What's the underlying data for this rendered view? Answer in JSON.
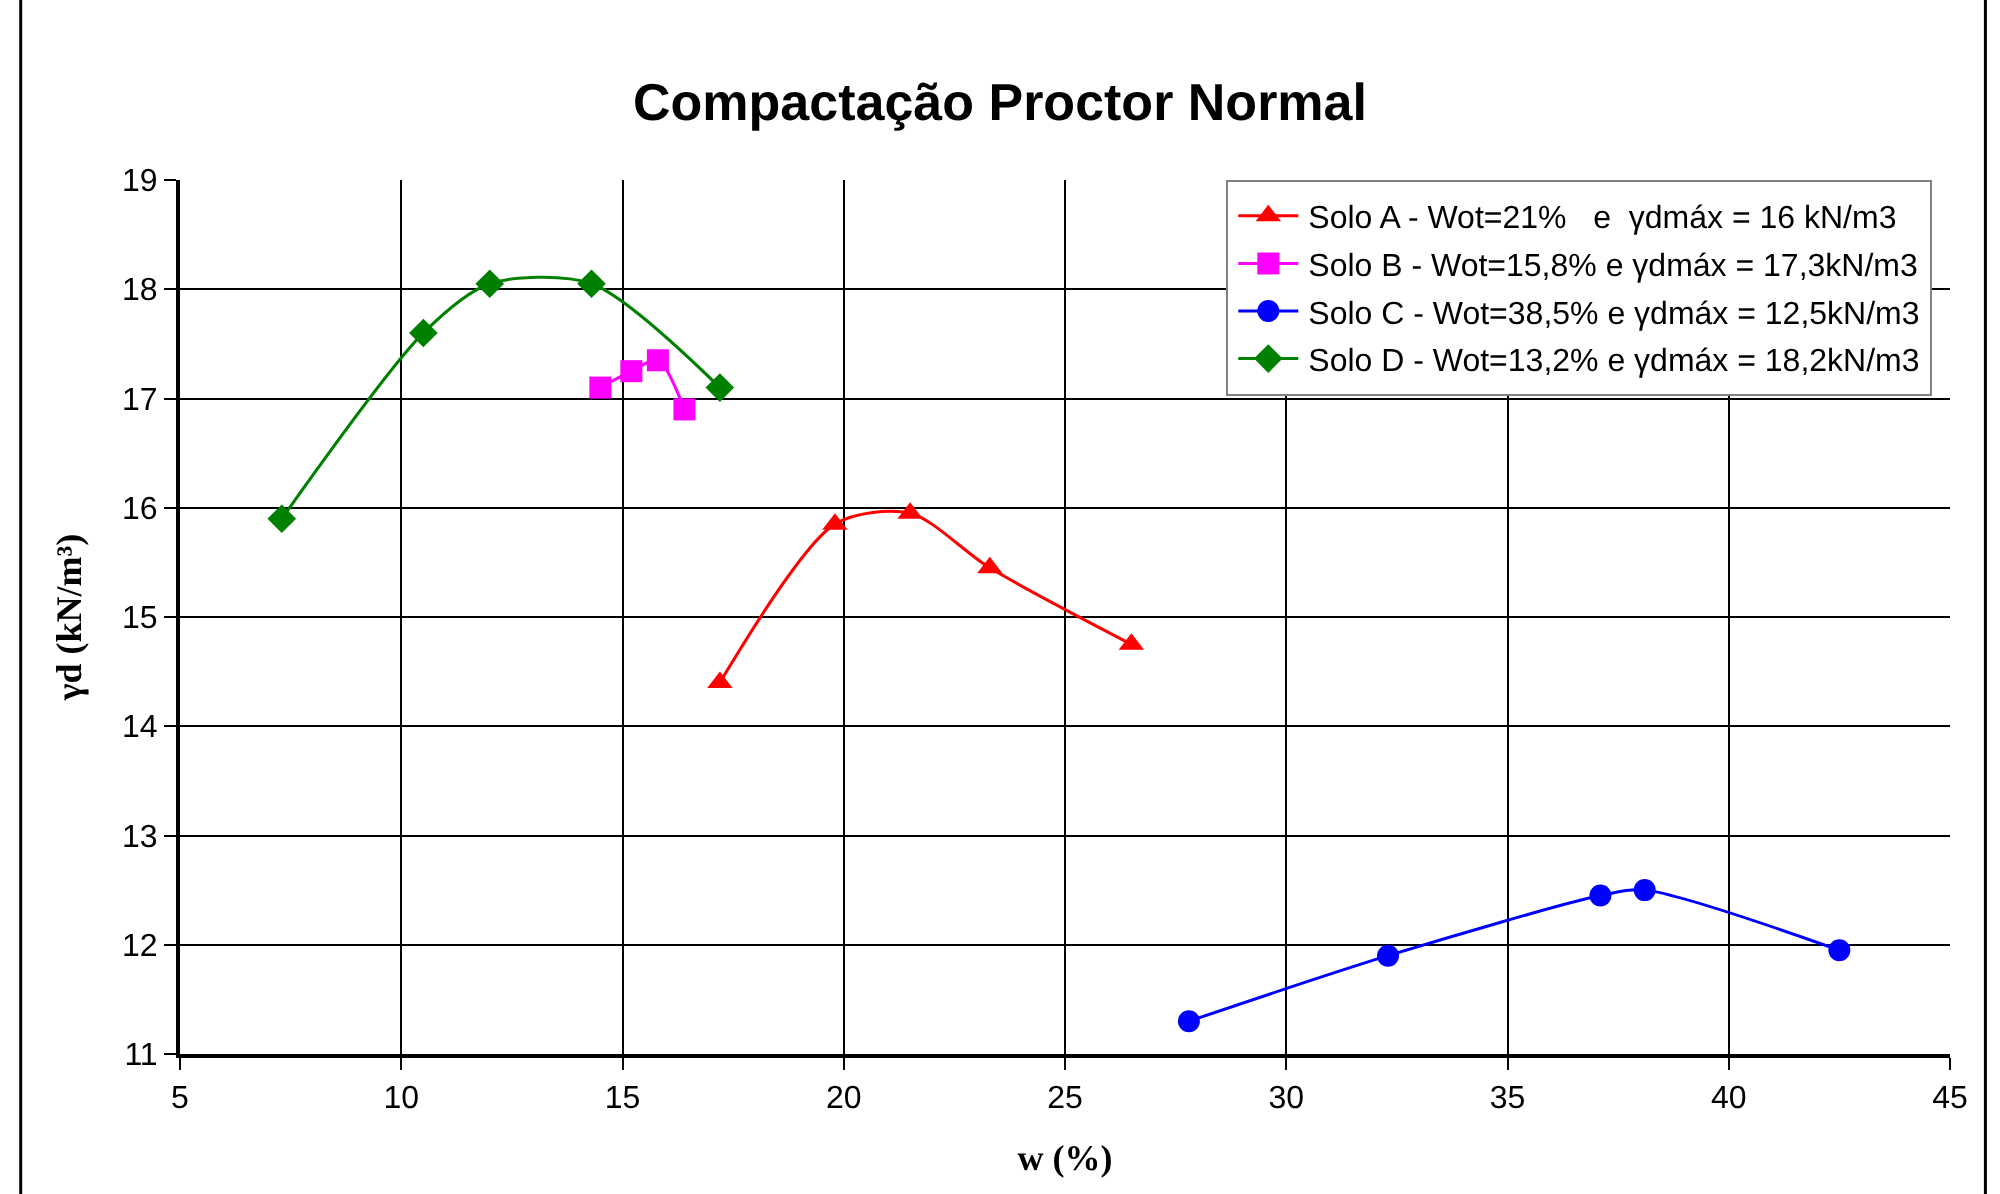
{
  "chart_data": {
    "type": "line",
    "title": "Compactação Proctor Normal",
    "xlabel": "w (%)",
    "ylabel": "γd (kN/m³)",
    "xlim": [
      5,
      45
    ],
    "xticks": [
      5,
      10,
      15,
      20,
      25,
      30,
      35,
      40,
      45
    ],
    "ylim": [
      11,
      19
    ],
    "yticks": [
      11,
      12,
      13,
      14,
      15,
      16,
      17,
      18,
      19
    ],
    "grid": true,
    "legend": "top right",
    "line_style": "solid",
    "series": [
      {
        "name": "Solo A - Wot=21%   e  γdmáx = 16 kN/m3",
        "color": "#ff0000",
        "marker": "triangle",
        "x": [
          17.2,
          19.8,
          21.5,
          23.3,
          26.5
        ],
        "values": [
          14.4,
          15.85,
          15.95,
          15.45,
          14.75
        ]
      },
      {
        "name": "Solo B - Wot=15,8% e γdmáx = 17,3kN/m3",
        "color": "#ff00ff",
        "marker": "square",
        "x": [
          14.5,
          15.2,
          15.8,
          16.4
        ],
        "values": [
          17.1,
          17.25,
          17.35,
          16.9
        ]
      },
      {
        "name": "Solo C - Wot=38,5% e γdmáx = 12,5kN/m3",
        "color": "#0000ff",
        "marker": "circle",
        "x": [
          27.8,
          32.3,
          37.1,
          38.1,
          42.5
        ],
        "values": [
          11.3,
          11.9,
          12.45,
          12.5,
          11.95
        ]
      },
      {
        "name": "Solo D - Wot=13,2% e γdmáx = 18,2kN/m3",
        "color": "#008000",
        "marker": "diamond",
        "x": [
          7.3,
          10.5,
          12.0,
          14.3,
          17.2
        ],
        "values": [
          15.9,
          17.6,
          18.05,
          18.05,
          17.1
        ]
      }
    ]
  }
}
